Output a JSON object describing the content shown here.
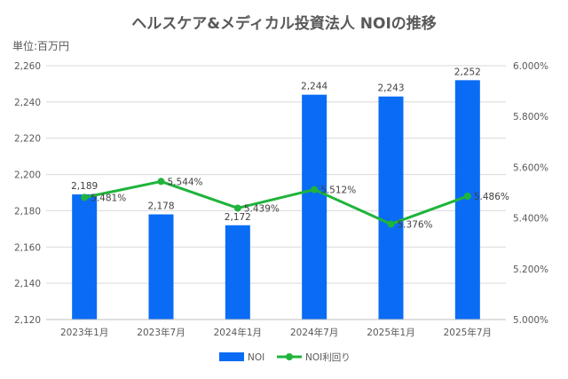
{
  "title": "ヘルスケア&メディカル投資法人 NOIの推移",
  "unit_label": "単位:百万円",
  "colors": {
    "bar": "#0a6cf5",
    "line": "#1fb43c",
    "grid": "#d9d9d9",
    "text": "#595959"
  },
  "chart_data": {
    "type": "bar",
    "categories": [
      "2023年1月",
      "2023年7月",
      "2024年1月",
      "2024年7月",
      "2025年1月",
      "2025年7月"
    ],
    "series": [
      {
        "name": "NOI",
        "type": "bar",
        "axis": "left",
        "values": [
          2189,
          2178,
          2172,
          2244,
          2243,
          2252
        ],
        "labels": [
          "2,189",
          "2,178",
          "2,172",
          "2,244",
          "2,243",
          "2,252"
        ]
      },
      {
        "name": "NOI利回り",
        "type": "line",
        "axis": "right",
        "values": [
          5.481,
          5.544,
          5.439,
          5.512,
          5.376,
          5.486
        ],
        "labels": [
          "5.481%",
          "5.544%",
          "5.439%",
          "5.512%",
          "5.376%",
          "5.486%"
        ]
      }
    ],
    "y_left": {
      "min": 2120,
      "max": 2260,
      "step": 20,
      "ticks": [
        "2,120",
        "2,140",
        "2,160",
        "2,180",
        "2,200",
        "2,220",
        "2,240",
        "2,260"
      ]
    },
    "y_right": {
      "min": 5.0,
      "max": 6.0,
      "step": 0.2,
      "ticks": [
        "5.000%",
        "5.200%",
        "5.400%",
        "5.600%",
        "5.800%",
        "6.000%"
      ]
    },
    "grid": true,
    "legend": "bottom"
  }
}
